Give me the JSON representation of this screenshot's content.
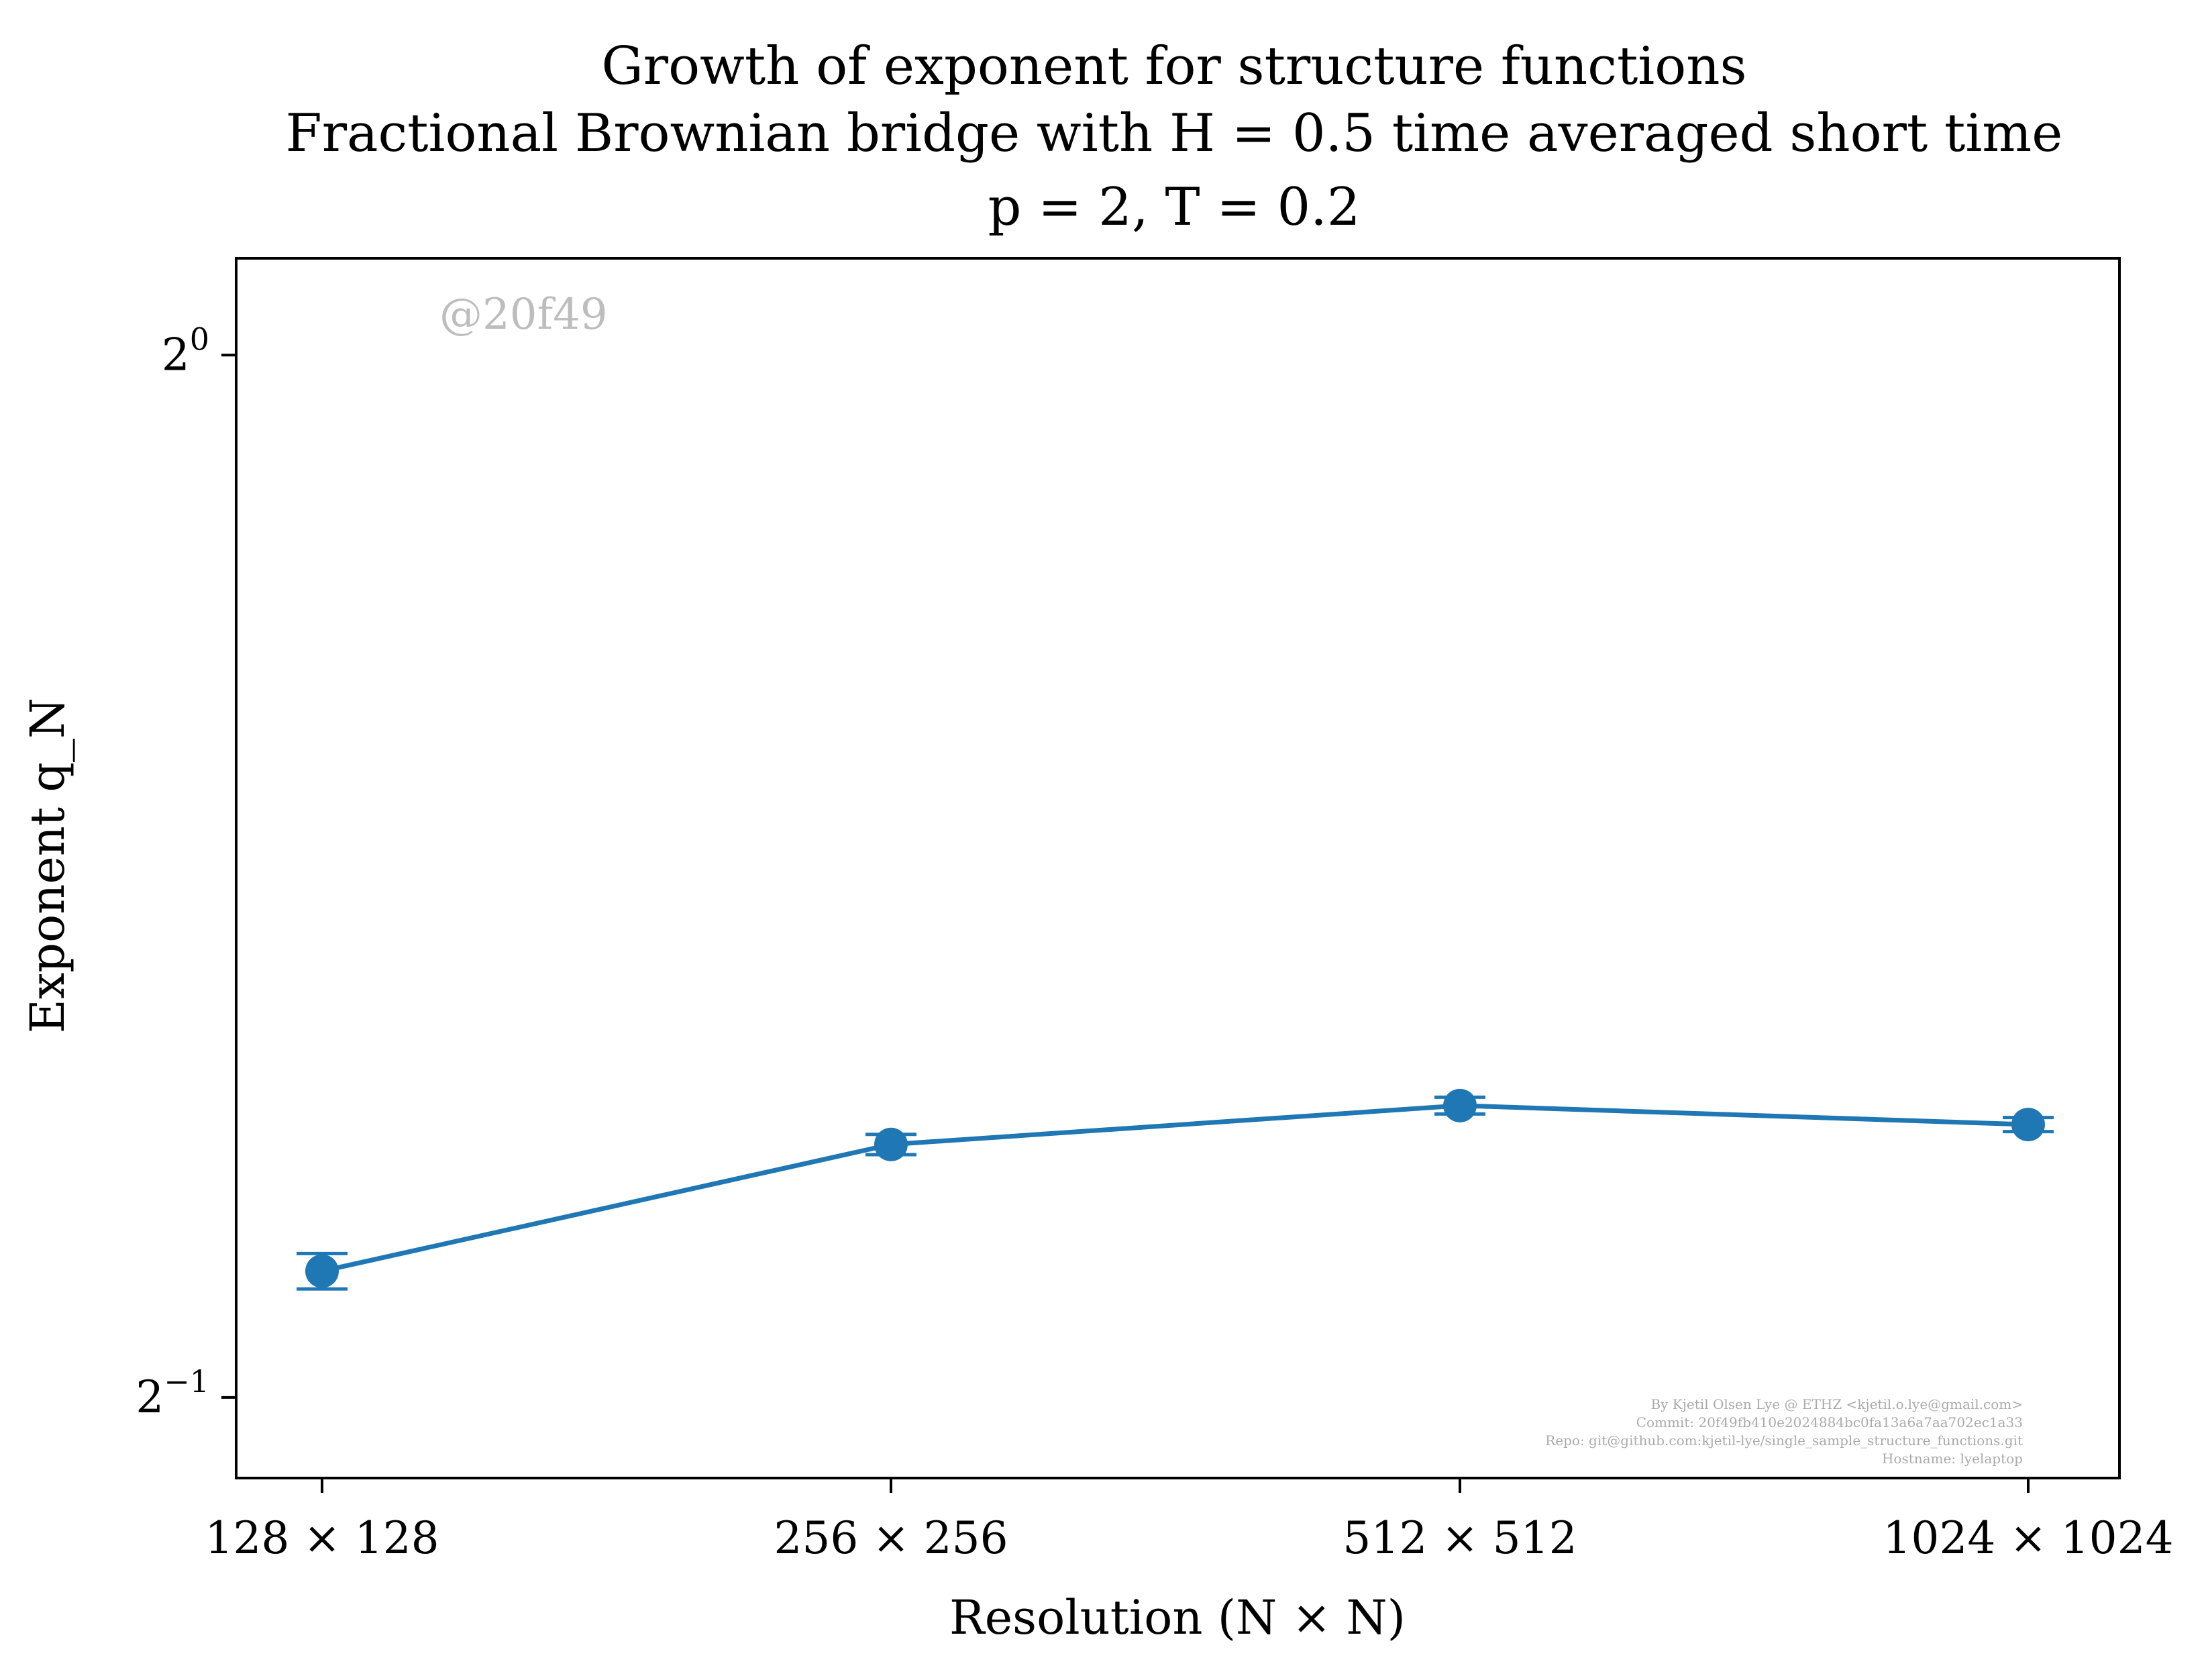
{
  "chart_data": {
    "type": "line",
    "title_lines": [
      "Growth of exponent for structure functions",
      "Fractional Brownian bridge with H = 0.5 time averaged short time",
      "p = 2, T = 0.2"
    ],
    "xlabel": "Resolution (N × N)",
    "ylabel": "Exponent q_N",
    "categories": [
      "128 × 128",
      "256 × 256",
      "512 × 512",
      "1024 × 1024"
    ],
    "y_scale": "log2",
    "ylim": [
      0.4739,
      1.0665
    ],
    "y_ticks": [
      {
        "value": 1.0,
        "base": "2",
        "exp": "0"
      },
      {
        "value": 0.5,
        "base": "2",
        "exp": "−1"
      }
    ],
    "series": [
      {
        "values": [
          0.5438,
          0.5916,
          0.6071,
          0.5995
        ],
        "errors": [
          0.0064,
          0.004,
          0.0034,
          0.0028
        ],
        "color": "#1f77b4"
      }
    ],
    "grid": false,
    "legend": "none",
    "watermark": "@20f49",
    "credits": [
      "By Kjetil Olsen Lye @ ETHZ <kjetil.o.lye@gmail.com>",
      "Commit: 20f49fb410e2024884bc0fa13a6a7aa702ec1a33",
      "Repo: git@github.com:kjetil-lye/single_sample_structure_functions.git",
      "Hostname: lyelaptop"
    ]
  }
}
